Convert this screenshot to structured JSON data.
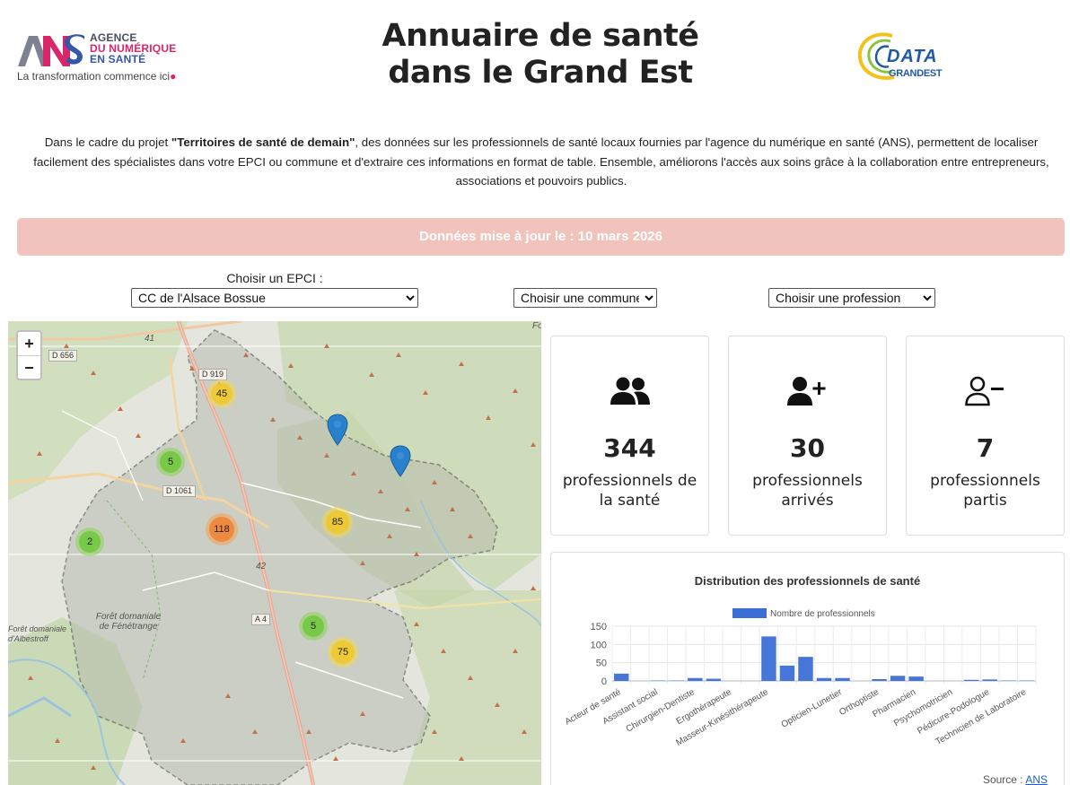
{
  "header": {
    "ans_logo": {
      "line1": "AGENCE",
      "line2": "DU NUMÉRIQUE",
      "line3": "EN SANTÉ",
      "tagline": "La transformation commence ici"
    },
    "title_line1": "Annuaire de santé",
    "title_line2": "dans le Grand Est",
    "data_logo": {
      "word": "DATA",
      "sub": "GRANDEST"
    }
  },
  "intro": {
    "part1": "Dans le cadre du projet ",
    "project": "\"Territoires de santé de demain\"",
    "part2": ", des données sur les professionnels de santé locaux fournies par l'agence du numérique en santé (ANS), permettent de localiser facilement des spécialistes dans votre EPCI ou commune et d'extraire ces informations en format de table. Ensemble, améliorons l'accès aux soins grâce à la collaboration entre entrepreneurs, associations et pouvoirs publics."
  },
  "update_banner": "Données mise à jour le : 10 mars 2026",
  "filters": {
    "epci_label": "Choisir un EPCI :",
    "epci_value": "CC de l'Alsace Bossue",
    "commune_value": "Choisir une commune",
    "profession_value": "Choisir une profession"
  },
  "map": {
    "zoom_in": "+",
    "zoom_out": "−",
    "clusters": [
      {
        "count": "45",
        "color": "yellow"
      },
      {
        "count": "5",
        "color": "green"
      },
      {
        "count": "118",
        "color": "orange"
      },
      {
        "count": "2",
        "color": "green"
      },
      {
        "count": "85",
        "color": "yellow"
      },
      {
        "count": "5",
        "color": "green"
      },
      {
        "count": "75",
        "color": "yellow"
      }
    ],
    "road_labels": [
      "D 656",
      "D 919",
      "D 1061",
      "A 4"
    ],
    "road_numbers": [
      "41",
      "42"
    ],
    "forest_labels": [
      "Forêt domaniale de Fénétrange",
      "Forêt domaniale d'Albestroff"
    ],
    "corner_label": "Fo"
  },
  "stats": [
    {
      "icon": "users-icon",
      "value": "344",
      "label": "professionnels de la santé"
    },
    {
      "icon": "user-plus-icon",
      "value": "30",
      "label": "professionnels arrivés"
    },
    {
      "icon": "user-minus-icon",
      "value": "7",
      "label": "professionnels partis"
    }
  ],
  "chart_data": {
    "type": "bar",
    "title": "Distribution des professionnels de santé",
    "legend_position": "top",
    "categories": [
      "Acteur de santé",
      "Assistant social",
      "Chirurgien-Dentiste",
      "Ergothérapeute",
      "Masseur-Kinésithérapeute",
      "Opticien-Lunetier",
      "Orthoptiste",
      "Pharmacien",
      "Psychomotricien",
      "Pédicure-Podologue",
      "Technicien de Laboratoire"
    ],
    "x": [
      "Acteur de santé",
      "",
      "Assistant social",
      "",
      "Chirurgien-Dentiste",
      "",
      "Ergothérapeute",
      "",
      "Masseur-Kinésithérapeute",
      "",
      "",
      "",
      "Opticien-Lunetier",
      "",
      "Orthoptiste",
      "",
      "Pharmacien",
      "",
      "Psychomotricien",
      "",
      "Pédicure-Podologue",
      "",
      "Technicien de Laboratoire"
    ],
    "series": [
      {
        "name": "Nombre de professionnels",
        "values": [
          20,
          0,
          1,
          1,
          8,
          6,
          0,
          0,
          122,
          42,
          66,
          8,
          8,
          0,
          5,
          14,
          12,
          0,
          0,
          3,
          4,
          1,
          1
        ]
      }
    ],
    "ylim": [
      0,
      150
    ],
    "yticks": [
      0,
      50,
      100,
      150
    ],
    "grid": true,
    "color": "#3b6fd6"
  },
  "source": {
    "label": "Source : ",
    "link": "ANS"
  }
}
